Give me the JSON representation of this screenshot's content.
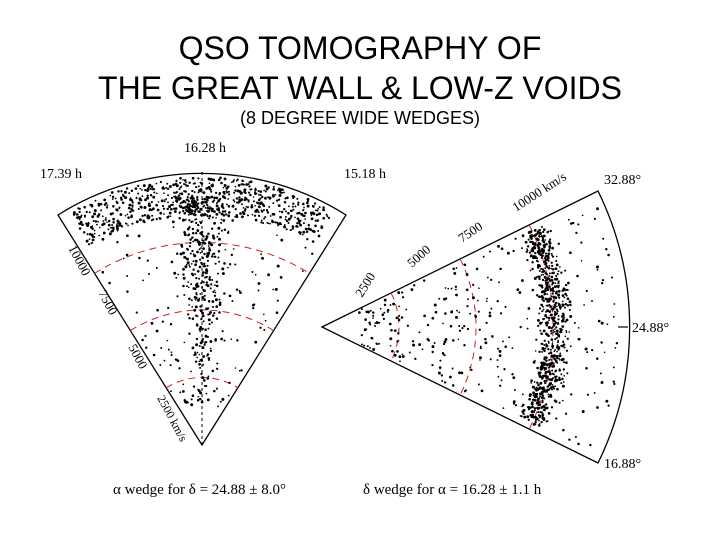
{
  "title_line1": "QSO TOMOGRAPHY OF",
  "title_line2": "THE GREAT WALL & LOW-Z VOIDS",
  "subtitle": "(8 DEGREE WIDE WEDGES)",
  "left_wedge": {
    "ra_left": "17.39 h",
    "ra_center": "16.28 h",
    "ra_right": "15.18 h",
    "radial_labels": [
      "10000",
      "7500",
      "5000",
      "2500 km/s"
    ],
    "caption": "α wedge for δ = 24.88 ± 8.0°"
  },
  "right_wedge": {
    "dec_top": "32.88°",
    "dec_center": "24.88°",
    "dec_bottom": "16.88°",
    "radial_labels": [
      "2500",
      "5000",
      "7500",
      "10000 km/s"
    ],
    "caption": "δ wedge for α = 16.28 ± 1.1 h"
  },
  "colors": {
    "ink": "#000000",
    "arc": "#cc2222",
    "background": "#ffffff"
  }
}
